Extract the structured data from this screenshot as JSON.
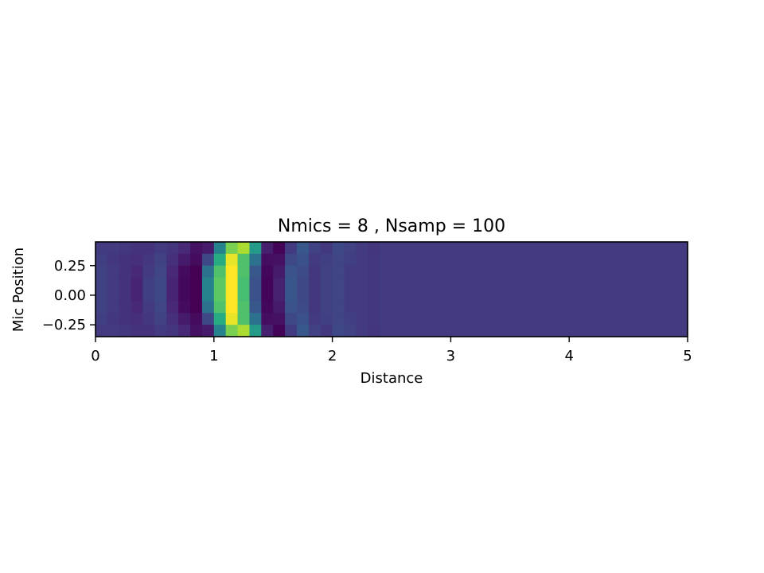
{
  "chart_data": {
    "type": "heatmap",
    "title": "Nmics = 8 , Nsamp = 100",
    "xlabel": "Distance",
    "ylabel": "Mic Position",
    "xlim": [
      0,
      5
    ],
    "ylim": [
      -0.35,
      0.45
    ],
    "x_ticks": [
      0,
      1,
      2,
      3,
      4,
      5
    ],
    "x_tick_labels": [
      "0",
      "1",
      "2",
      "3",
      "4",
      "5"
    ],
    "y_ticks": [
      0.25,
      0.0,
      -0.25
    ],
    "y_tick_labels": [
      "0.25",
      "0.00",
      "−0.25"
    ],
    "colormap": "viridis",
    "n_cols": 50,
    "cell_width": 0.1,
    "mic_positions": [
      0.4,
      0.3,
      0.2,
      0.1,
      0.0,
      -0.1,
      -0.2,
      -0.3
    ],
    "grid": false,
    "values": [
      [
        0.18,
        0.18,
        0.17,
        0.15,
        0.15,
        0.18,
        0.16,
        0.12,
        0.05,
        0.08,
        0.45,
        0.8,
        0.88,
        0.55,
        0.09,
        0.01,
        0.18,
        0.28,
        0.2,
        0.17,
        0.22,
        0.2,
        0.18,
        0.16,
        0.18
      ],
      [
        0.19,
        0.17,
        0.15,
        0.14,
        0.17,
        0.2,
        0.14,
        0.08,
        0.03,
        0.22,
        0.62,
        0.97,
        0.72,
        0.38,
        0.04,
        0.05,
        0.22,
        0.25,
        0.18,
        0.19,
        0.21,
        0.19,
        0.18,
        0.17,
        0.18
      ],
      [
        0.2,
        0.18,
        0.15,
        0.12,
        0.18,
        0.21,
        0.12,
        0.03,
        0.0,
        0.38,
        0.72,
        1.0,
        0.72,
        0.28,
        0.02,
        0.08,
        0.26,
        0.23,
        0.17,
        0.2,
        0.21,
        0.18,
        0.18,
        0.17,
        0.18
      ],
      [
        0.2,
        0.18,
        0.15,
        0.11,
        0.19,
        0.22,
        0.11,
        0.02,
        0.0,
        0.45,
        0.75,
        1.0,
        0.7,
        0.25,
        0.01,
        0.1,
        0.27,
        0.22,
        0.17,
        0.2,
        0.21,
        0.18,
        0.18,
        0.17,
        0.18
      ],
      [
        0.2,
        0.18,
        0.15,
        0.11,
        0.19,
        0.22,
        0.11,
        0.02,
        0.0,
        0.45,
        0.75,
        1.0,
        0.7,
        0.25,
        0.01,
        0.1,
        0.27,
        0.22,
        0.17,
        0.2,
        0.21,
        0.18,
        0.18,
        0.17,
        0.18
      ],
      [
        0.2,
        0.18,
        0.15,
        0.12,
        0.18,
        0.21,
        0.12,
        0.03,
        0.0,
        0.38,
        0.72,
        1.0,
        0.72,
        0.28,
        0.02,
        0.08,
        0.26,
        0.23,
        0.17,
        0.2,
        0.21,
        0.18,
        0.18,
        0.17,
        0.18
      ],
      [
        0.19,
        0.17,
        0.15,
        0.14,
        0.17,
        0.2,
        0.14,
        0.08,
        0.03,
        0.22,
        0.62,
        0.97,
        0.72,
        0.38,
        0.04,
        0.05,
        0.22,
        0.25,
        0.18,
        0.19,
        0.21,
        0.19,
        0.18,
        0.17,
        0.18
      ],
      [
        0.18,
        0.18,
        0.17,
        0.15,
        0.15,
        0.18,
        0.16,
        0.12,
        0.05,
        0.08,
        0.45,
        0.8,
        0.88,
        0.55,
        0.09,
        0.01,
        0.18,
        0.28,
        0.2,
        0.17,
        0.22,
        0.2,
        0.18,
        0.16,
        0.18
      ]
    ],
    "fill_value": 0.18
  }
}
